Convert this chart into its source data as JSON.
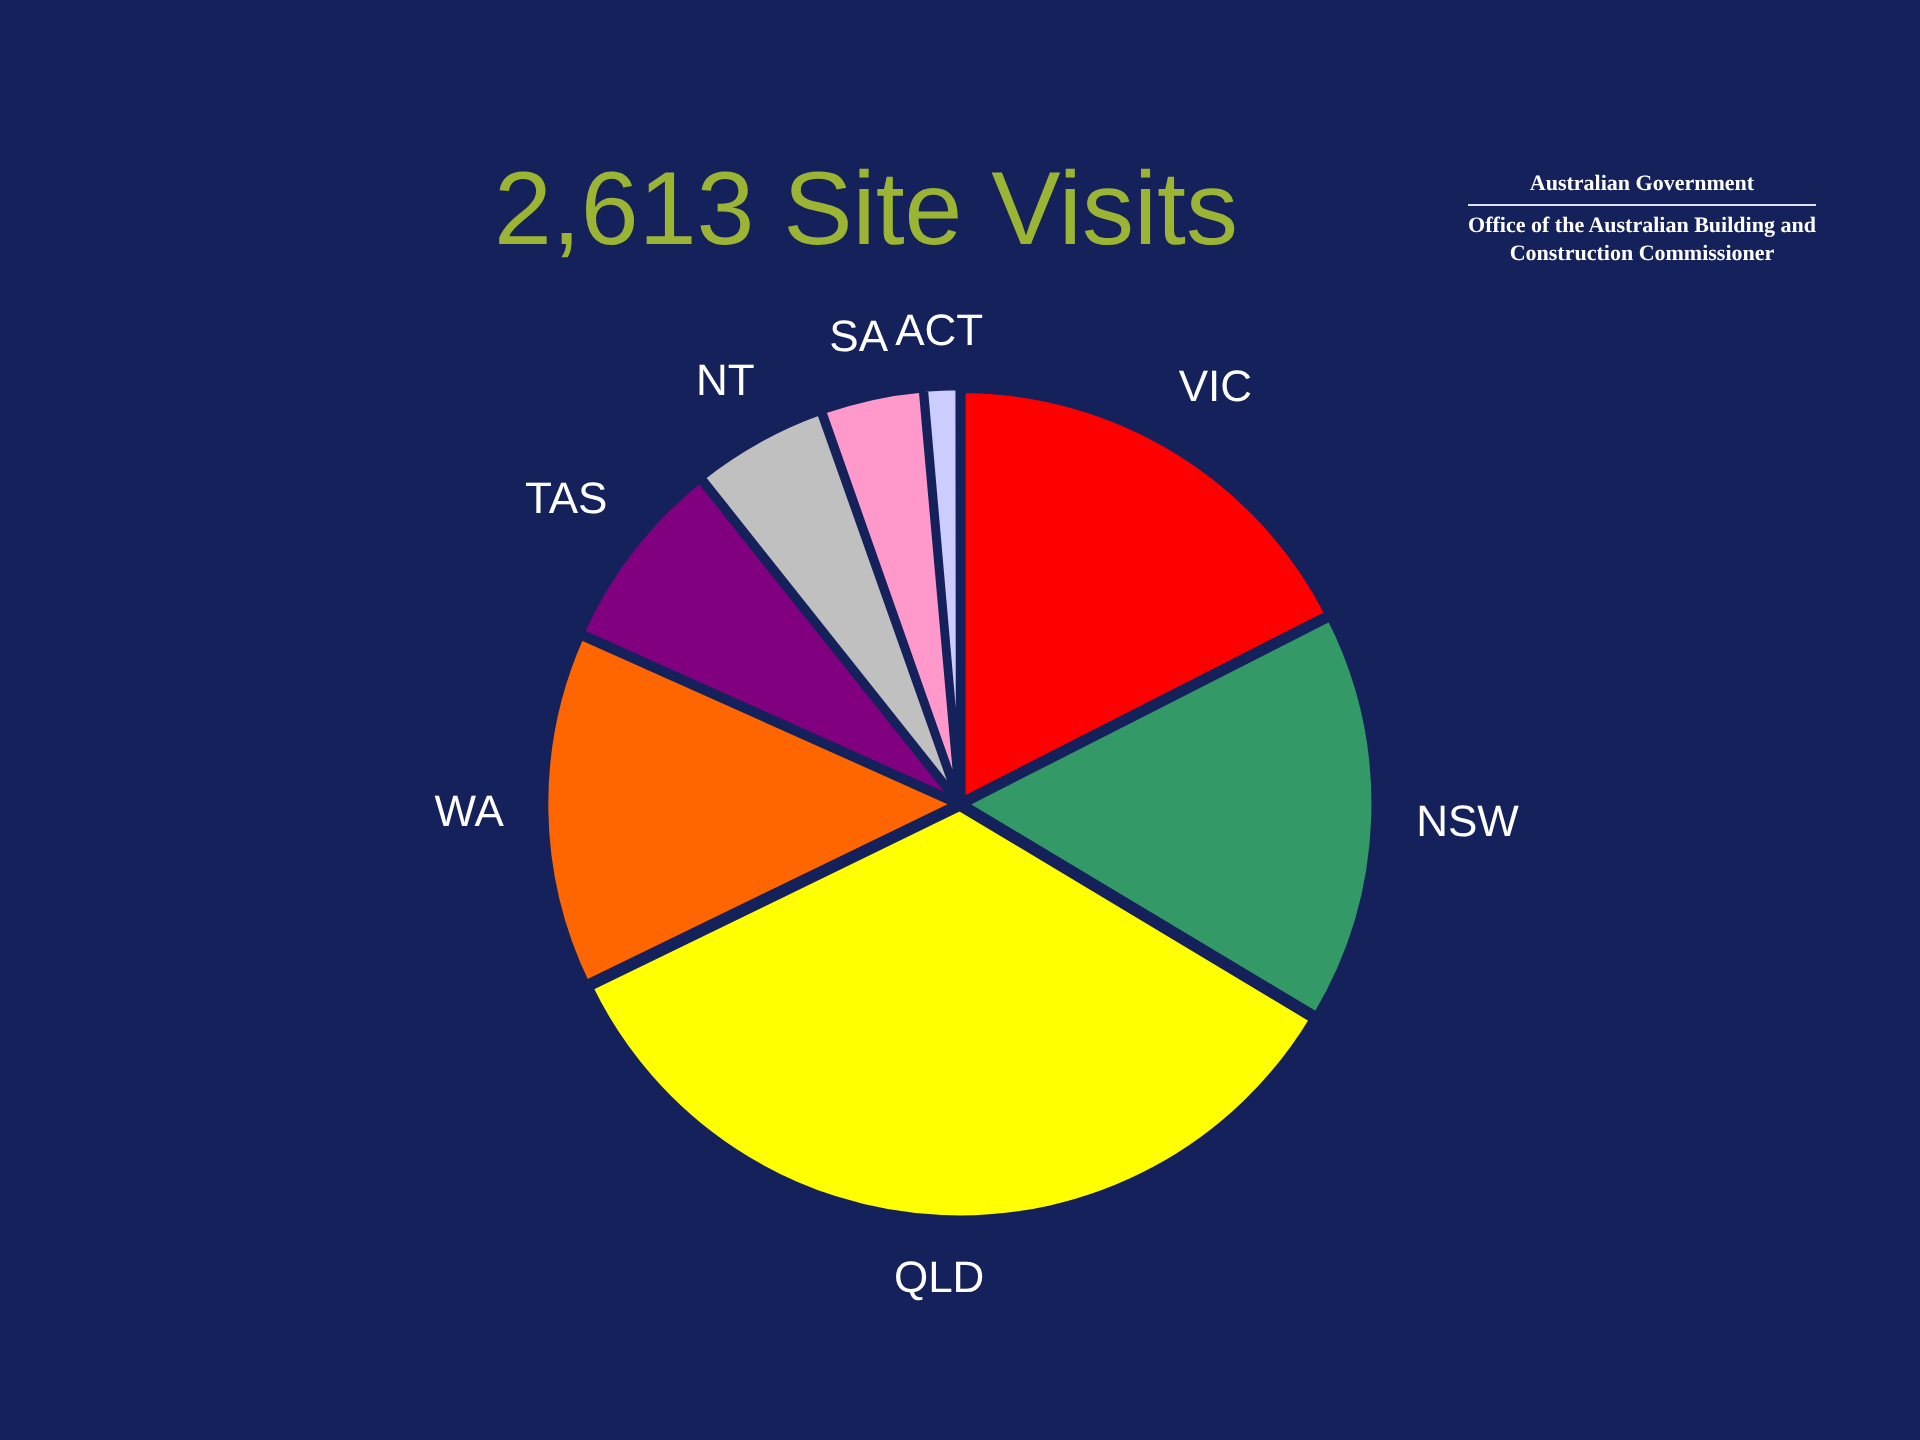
{
  "chart_data": {
    "type": "pie",
    "title": "2,613 Site Visits",
    "categories": [
      "VIC",
      "NSW",
      "QLD",
      "WA",
      "TAS",
      "NT",
      "SA",
      "ACT"
    ],
    "values": [
      17.5,
      16.1,
      34.2,
      13.9,
      7.6,
      5.3,
      4.0,
      1.4
    ],
    "colors": [
      "#ff0000",
      "#339966",
      "#ffff00",
      "#ff6600",
      "#800080",
      "#c0c0c0",
      "#ff99cc",
      "#ccccff"
    ],
    "annotations": [
      "Australian Government",
      "Office of the Australian Building and Construction Commissioner"
    ]
  }
}
